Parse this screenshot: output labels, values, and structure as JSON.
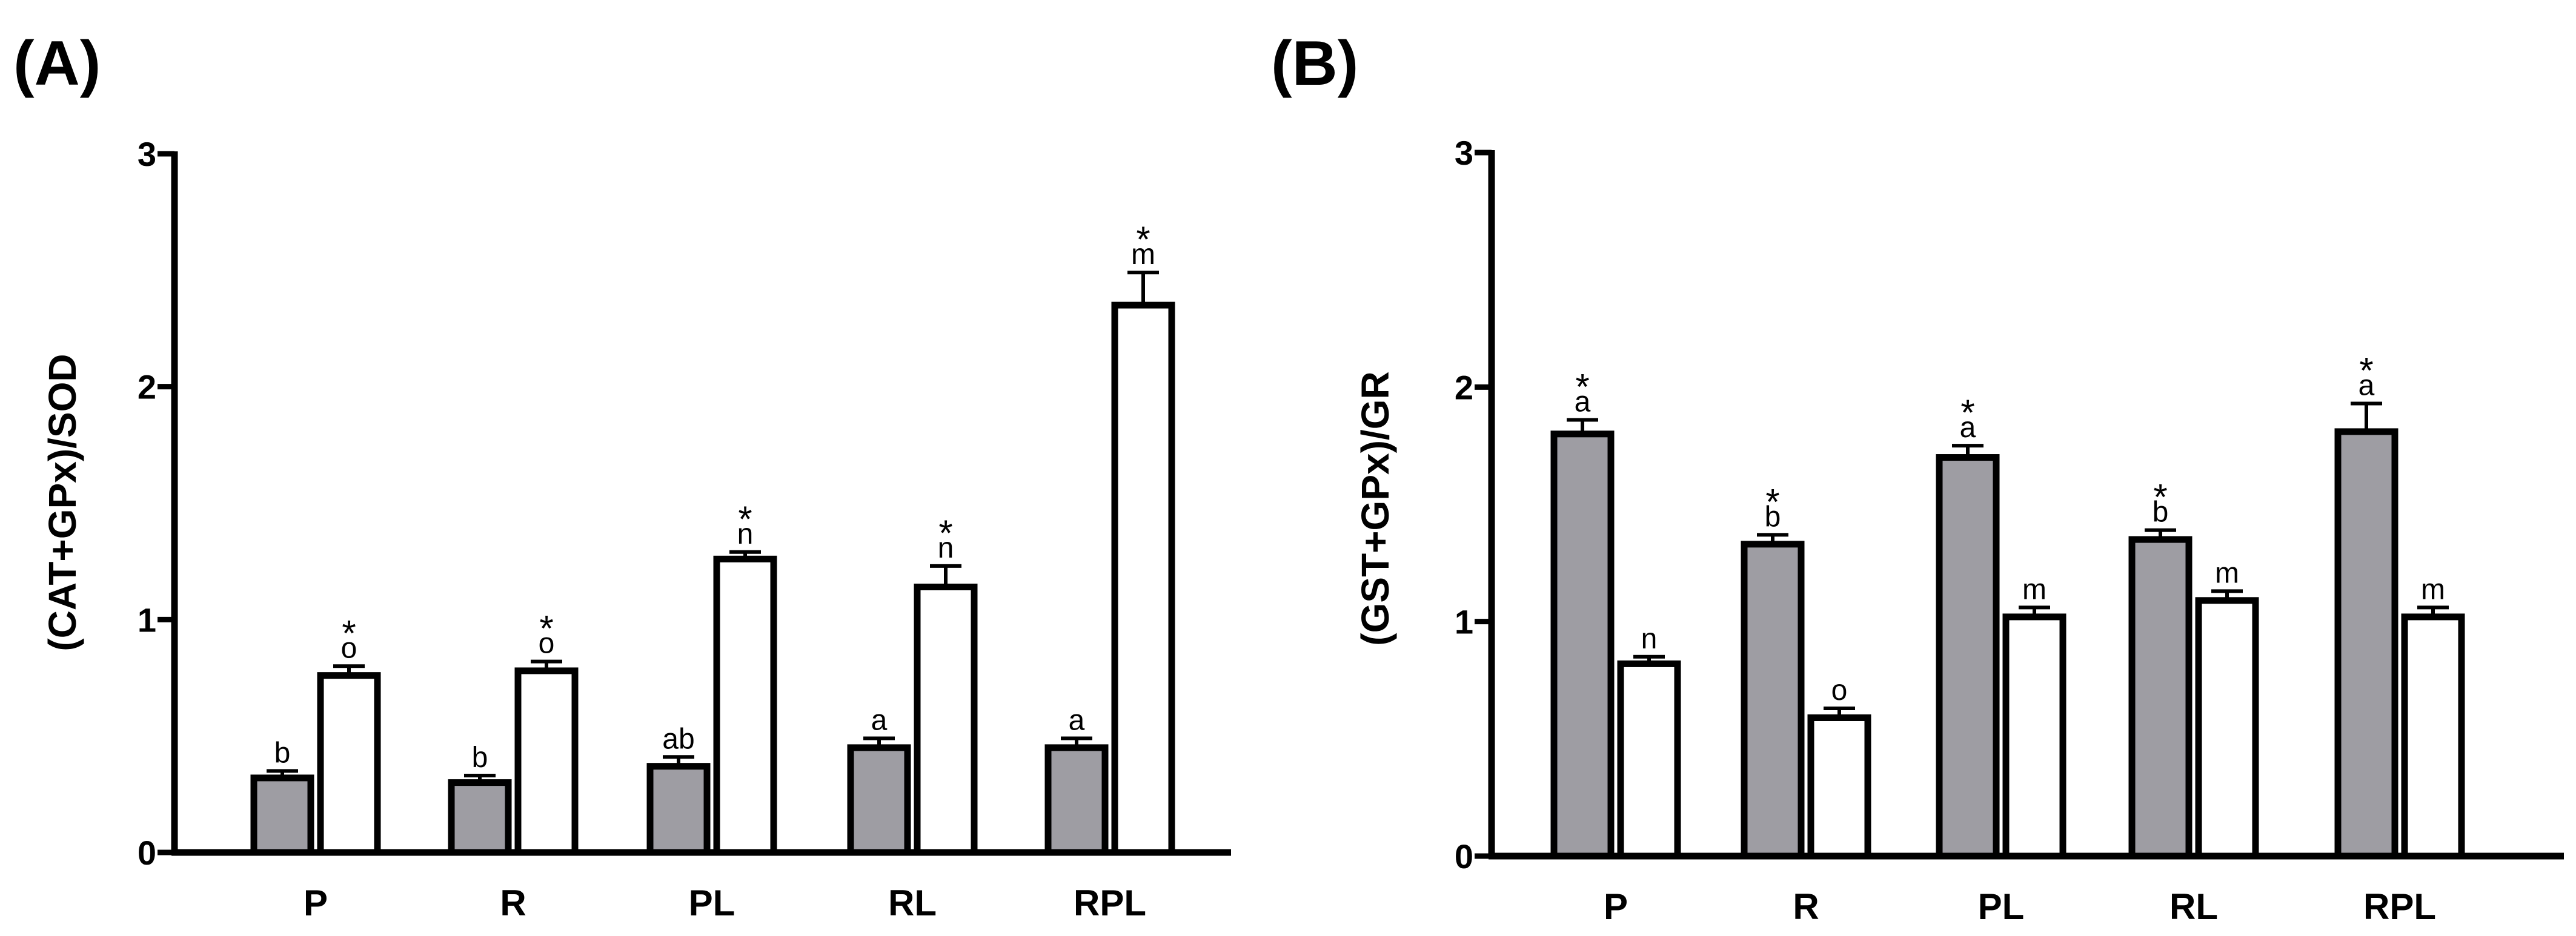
{
  "chart_data": [
    {
      "type": "bar",
      "panel": "(A)",
      "title": "",
      "xlabel": "",
      "ylabel": "(CAT+GPx)/SOD",
      "ylim": [
        0,
        3
      ],
      "yticks": [
        "0",
        "1",
        "2",
        "3"
      ],
      "categories": [
        "P",
        "R",
        "PL",
        "RL",
        "RPL"
      ],
      "series": [
        {
          "name": "gray",
          "color": "#9e9da3",
          "values": [
            0.32,
            0.3,
            0.37,
            0.45,
            0.45
          ],
          "errors": [
            0.03,
            0.03,
            0.04,
            0.04,
            0.04
          ],
          "letters": [
            "b",
            "b",
            "ab",
            "a",
            "a"
          ],
          "stars": [
            "",
            "",
            "",
            "",
            ""
          ]
        },
        {
          "name": "white",
          "color": "#ffffff",
          "values": [
            0.76,
            0.78,
            1.26,
            1.14,
            2.35
          ],
          "errors": [
            0.04,
            0.04,
            0.03,
            0.09,
            0.14
          ],
          "letters": [
            "o",
            "o",
            "n",
            "n",
            "m"
          ],
          "stars": [
            "*",
            "*",
            "*",
            "*",
            "*"
          ]
        }
      ]
    },
    {
      "type": "bar",
      "panel": "(B)",
      "title": "",
      "xlabel": "",
      "ylabel": "(GST+GPx)/GR",
      "ylim": [
        0,
        3
      ],
      "yticks": [
        "0",
        "1",
        "2",
        "3"
      ],
      "categories": [
        "P",
        "R",
        "PL",
        "RL",
        "RPL"
      ],
      "series": [
        {
          "name": "gray",
          "color": "#9e9da3",
          "values": [
            1.8,
            1.33,
            1.7,
            1.35,
            1.81
          ],
          "errors": [
            0.06,
            0.04,
            0.05,
            0.04,
            0.12
          ],
          "letters": [
            "a",
            "b",
            "a",
            "b",
            "a"
          ],
          "stars": [
            "*",
            "*",
            "*",
            "*",
            "*"
          ]
        },
        {
          "name": "white",
          "color": "#ffffff",
          "values": [
            0.82,
            0.59,
            1.02,
            1.09,
            1.02
          ],
          "errors": [
            0.03,
            0.04,
            0.04,
            0.04,
            0.04
          ],
          "letters": [
            "n",
            "o",
            "m",
            "m",
            "m"
          ],
          "stars": [
            "",
            "",
            "",
            "",
            ""
          ]
        }
      ]
    }
  ]
}
